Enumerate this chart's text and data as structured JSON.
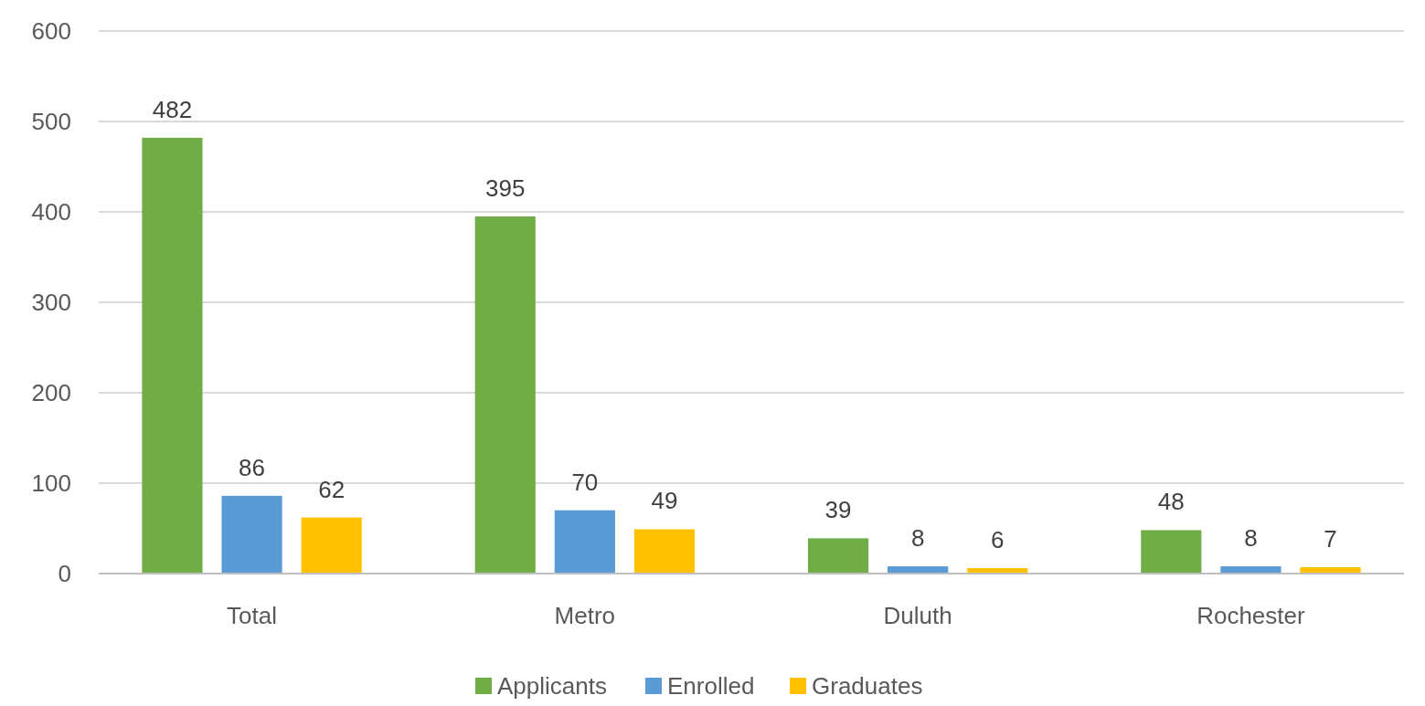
{
  "chart_data": {
    "type": "bar",
    "categories": [
      "Total",
      "Metro",
      "Duluth",
      "Rochester"
    ],
    "series": [
      {
        "name": "Applicants",
        "color": "#70ad47",
        "values": [
          482,
          395,
          39,
          48
        ]
      },
      {
        "name": "Enrolled",
        "color": "#5b9bd5",
        "values": [
          86,
          70,
          8,
          8
        ]
      },
      {
        "name": "Graduates",
        "color": "#ffc000",
        "values": [
          62,
          49,
          6,
          7
        ]
      }
    ],
    "ylim": [
      0,
      600
    ],
    "yticks": [
      0,
      100,
      200,
      300,
      400,
      500,
      600
    ],
    "grid": "y",
    "legend": "bottom",
    "data_labels": true
  }
}
